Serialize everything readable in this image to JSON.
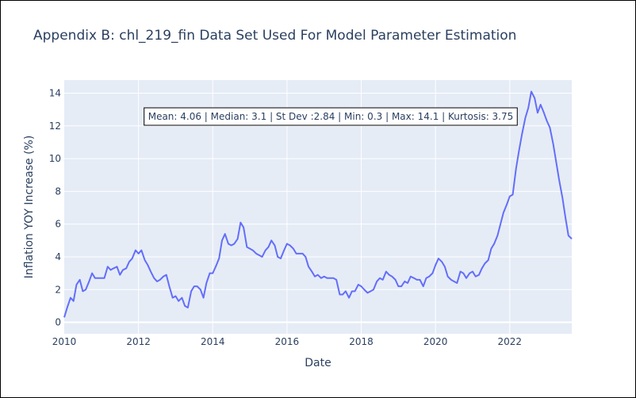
{
  "title": "Appendix B: chl_219_fin Data Set Used For Model Parameter Estimation",
  "colors": {
    "line": "#636efa",
    "plot_bg": "#e5ecf6",
    "grid": "#ffffff",
    "text": "#2a3f5f"
  },
  "chart_data": {
    "type": "line",
    "title": "Appendix B: chl_219_fin Data Set Used For Model Parameter Estimation",
    "xlabel": "Date",
    "ylabel": "Inflation YOY Increase (%)",
    "xlim": [
      2010.0,
      2023.67
    ],
    "ylim": [
      -0.7,
      14.8
    ],
    "grid": true,
    "x_ticks": [
      2010,
      2012,
      2014,
      2016,
      2018,
      2020,
      2022
    ],
    "x_tick_labels": [
      "2010",
      "2012",
      "2014",
      "2016",
      "2018",
      "2020",
      "2022"
    ],
    "y_ticks": [
      0,
      2,
      4,
      6,
      8,
      10,
      12,
      14
    ],
    "y_tick_labels": [
      "0",
      "2",
      "4",
      "6",
      "8",
      "10",
      "12",
      "14"
    ],
    "annotation": "Mean: 4.06 | Median: 3.1 | St Dev :2.84 | Min: 0.3 | Max: 14.1 | Kurtosis: 3.75",
    "series": [
      {
        "x": [
          2010.0,
          2010.08,
          2010.17,
          2010.25,
          2010.33,
          2010.42,
          2010.5,
          2010.58,
          2010.67,
          2010.75,
          2010.83,
          2010.92,
          2011.0,
          2011.08,
          2011.17,
          2011.25,
          2011.33,
          2011.42,
          2011.5,
          2011.58,
          2011.67,
          2011.75,
          2011.83,
          2011.92,
          2012.0,
          2012.08,
          2012.17,
          2012.25,
          2012.33,
          2012.42,
          2012.5,
          2012.58,
          2012.67,
          2012.75,
          2012.83,
          2012.92,
          2013.0,
          2013.08,
          2013.17,
          2013.25,
          2013.33,
          2013.42,
          2013.5,
          2013.58,
          2013.67,
          2013.75,
          2013.83,
          2013.92,
          2014.0,
          2014.08,
          2014.17,
          2014.25,
          2014.33,
          2014.42,
          2014.5,
          2014.58,
          2014.67,
          2014.75,
          2014.83,
          2014.92,
          2015.0,
          2015.08,
          2015.17,
          2015.25,
          2015.33,
          2015.42,
          2015.5,
          2015.58,
          2015.67,
          2015.75,
          2015.83,
          2015.92,
          2016.0,
          2016.08,
          2016.17,
          2016.25,
          2016.33,
          2016.42,
          2016.5,
          2016.58,
          2016.67,
          2016.75,
          2016.83,
          2016.92,
          2017.0,
          2017.08,
          2017.17,
          2017.25,
          2017.33,
          2017.42,
          2017.5,
          2017.58,
          2017.67,
          2017.75,
          2017.83,
          2017.92,
          2018.0,
          2018.08,
          2018.17,
          2018.25,
          2018.33,
          2018.42,
          2018.5,
          2018.58,
          2018.67,
          2018.75,
          2018.83,
          2018.92,
          2019.0,
          2019.08,
          2019.17,
          2019.25,
          2019.33,
          2019.42,
          2019.5,
          2019.58,
          2019.67,
          2019.75,
          2019.83,
          2019.92,
          2020.0,
          2020.08,
          2020.17,
          2020.25,
          2020.33,
          2020.42,
          2020.5,
          2020.58,
          2020.67,
          2020.75,
          2020.83,
          2020.92,
          2021.0,
          2021.08,
          2021.17,
          2021.25,
          2021.33,
          2021.42,
          2021.5,
          2021.58,
          2021.67,
          2021.75,
          2021.83,
          2021.92,
          2022.0,
          2022.08,
          2022.17,
          2022.25,
          2022.33,
          2022.42,
          2022.5,
          2022.58,
          2022.67,
          2022.75,
          2022.83,
          2022.92,
          2023.0,
          2023.08,
          2023.17,
          2023.25,
          2023.33,
          2023.42,
          2023.5,
          2023.58,
          2023.67
        ],
        "y": [
          0.3,
          0.9,
          1.5,
          1.3,
          2.3,
          2.6,
          1.9,
          2.0,
          2.5,
          3.0,
          2.7,
          2.7,
          2.7,
          2.7,
          3.4,
          3.2,
          3.3,
          3.4,
          2.9,
          3.2,
          3.3,
          3.7,
          3.9,
          4.4,
          4.2,
          4.4,
          3.8,
          3.5,
          3.1,
          2.7,
          2.5,
          2.6,
          2.8,
          2.9,
          2.2,
          1.5,
          1.6,
          1.3,
          1.5,
          1.0,
          0.9,
          1.9,
          2.2,
          2.2,
          2.0,
          1.5,
          2.4,
          3.0,
          3.0,
          3.4,
          3.9,
          5.0,
          5.4,
          4.8,
          4.7,
          4.8,
          5.1,
          6.1,
          5.8,
          4.6,
          4.5,
          4.4,
          4.2,
          4.1,
          4.0,
          4.4,
          4.6,
          5.0,
          4.7,
          4.0,
          3.9,
          4.4,
          4.8,
          4.7,
          4.5,
          4.2,
          4.2,
          4.2,
          4.0,
          3.4,
          3.1,
          2.8,
          2.9,
          2.7,
          2.8,
          2.7,
          2.7,
          2.7,
          2.6,
          1.7,
          1.7,
          1.9,
          1.5,
          1.9,
          1.9,
          2.3,
          2.2,
          2.0,
          1.8,
          1.9,
          2.0,
          2.5,
          2.7,
          2.6,
          3.1,
          2.9,
          2.8,
          2.6,
          2.2,
          2.2,
          2.5,
          2.4,
          2.8,
          2.7,
          2.6,
          2.6,
          2.2,
          2.7,
          2.8,
          3.0,
          3.5,
          3.9,
          3.7,
          3.4,
          2.8,
          2.6,
          2.5,
          2.4,
          3.1,
          3.0,
          2.7,
          3.0,
          3.1,
          2.8,
          2.9,
          3.3,
          3.6,
          3.8,
          4.5,
          4.8,
          5.3,
          6.0,
          6.7,
          7.2,
          7.7,
          7.8,
          9.4,
          10.5,
          11.5,
          12.5,
          13.1,
          14.1,
          13.7,
          12.8,
          13.3,
          12.8,
          12.3,
          11.9,
          10.9,
          9.8,
          8.7,
          7.6,
          6.4,
          5.3,
          5.1
        ],
        "color": "#636efa"
      }
    ]
  }
}
